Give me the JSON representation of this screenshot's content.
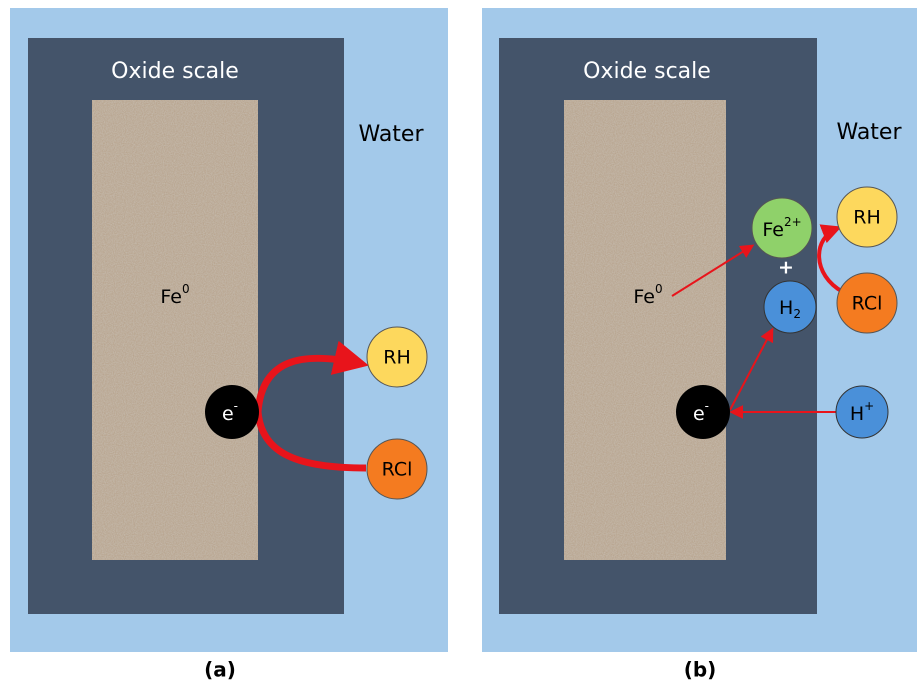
{
  "panels": [
    {
      "region_label": "Oxide scale",
      "medium_label": "Water",
      "iron": {
        "base": "Fe",
        "sup": "0"
      },
      "electron": {
        "base": "e",
        "sup": "-"
      },
      "product": "RH",
      "reactant": "RCl",
      "caption": "(a)"
    },
    {
      "region_label": "Oxide scale",
      "medium_label": "Water",
      "iron": {
        "base": "Fe",
        "sup": "0"
      },
      "electron": {
        "base": "e",
        "sup": "-"
      },
      "iron_ion": {
        "base": "Fe",
        "sup": "2+"
      },
      "plus": "+",
      "hydrogen": {
        "base": "H",
        "sub": "2"
      },
      "product": "RH",
      "reactant": "RCl",
      "proton": {
        "base": "H",
        "sup": "+"
      },
      "caption": "(b)"
    }
  ]
}
